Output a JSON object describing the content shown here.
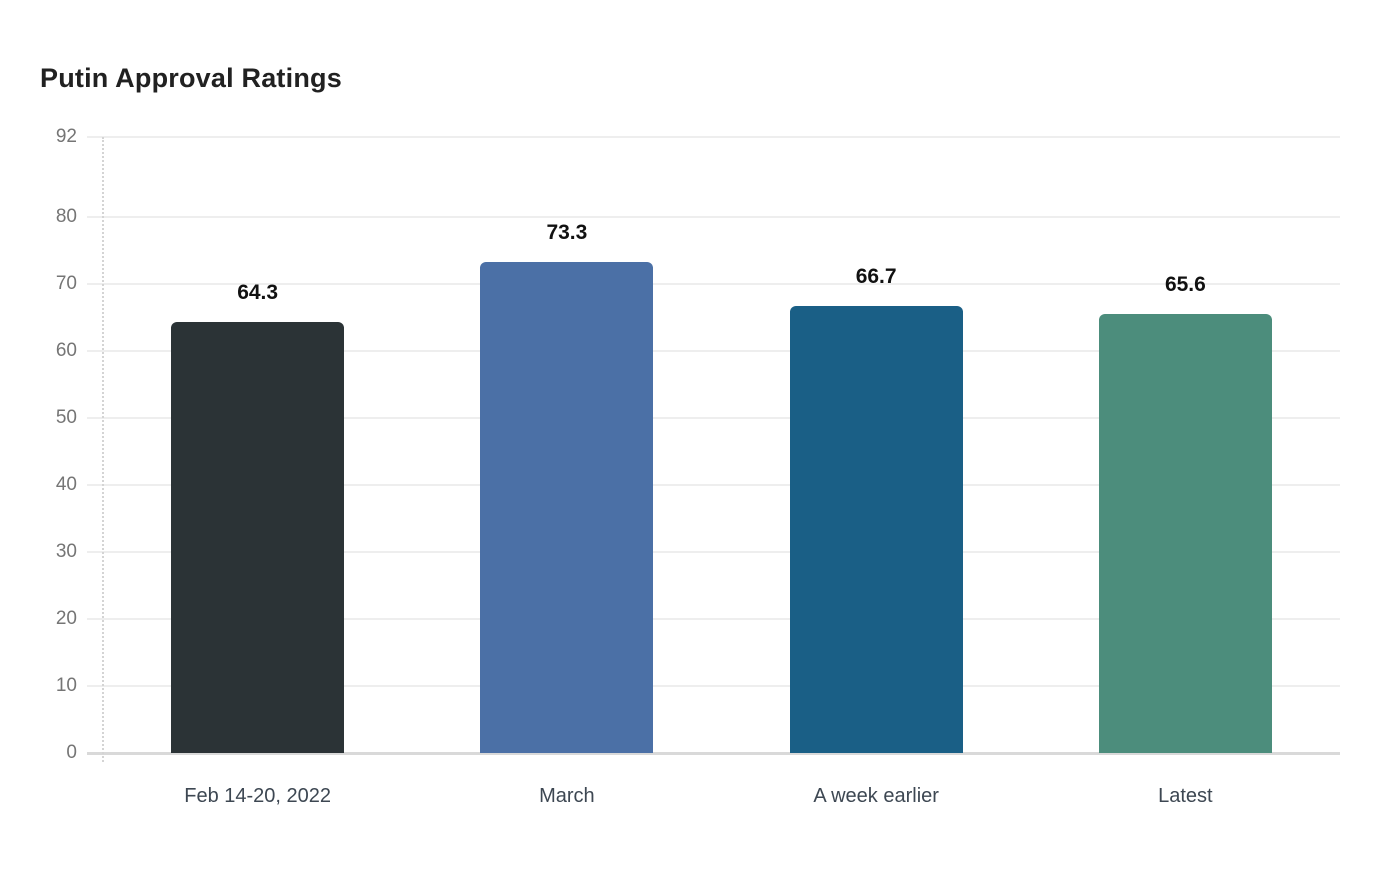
{
  "page": {
    "background": "#ffffff"
  },
  "chart_data": {
    "type": "bar",
    "title": "Putin Approval Ratings",
    "categories": [
      "Feb 14-20, 2022",
      "March",
      "A week earlier",
      "Latest"
    ],
    "values": [
      64.3,
      73.3,
      66.7,
      65.6
    ],
    "value_labels": [
      "64.3",
      "73.3",
      "66.7",
      "65.6"
    ],
    "bar_colors": [
      "#2b3336",
      "#4b70a6",
      "#1a5f86",
      "#4c8d7c"
    ],
    "y_ticks": [
      0,
      10,
      20,
      30,
      40,
      50,
      60,
      70,
      80,
      92
    ],
    "ylim": [
      0,
      92
    ],
    "xlabel": "",
    "ylabel": "",
    "grid": "horizontal",
    "legend": "none",
    "colors": {
      "title": "#212121",
      "tick_label": "#757575",
      "category_label": "#3d4752",
      "value_label": "#111111",
      "gridline": "#eeeeee",
      "baseline": "#d9d9d9",
      "axis_dotted": "#d4d4d4"
    }
  }
}
